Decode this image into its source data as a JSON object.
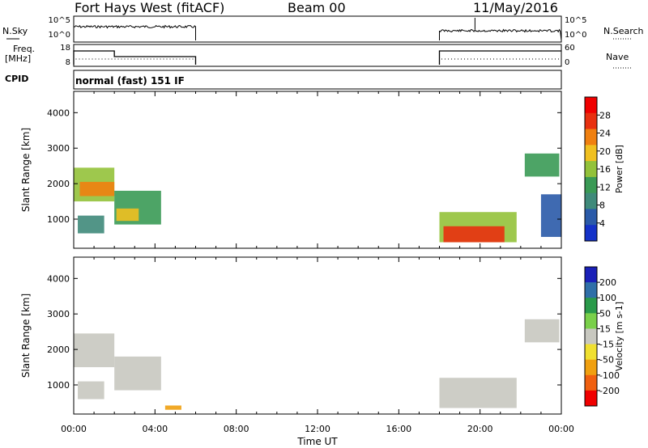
{
  "header": {
    "station": "Fort Hays West (fitACF)",
    "beam": "Beam 00",
    "date": "11/May/2016"
  },
  "labels": {
    "nsky": "N.Sky",
    "nsearch": "N.Search",
    "freq_top": "Freq.",
    "freq_unit": "[MHz]",
    "nave": "Nave",
    "cpid": "CPID",
    "cpid_value": "normal (fast) 151 IF"
  },
  "noise_axis": {
    "left_ticks": [
      "10^5",
      "10^0"
    ],
    "right_ticks": [
      "10^5",
      "10^0"
    ]
  },
  "freq_axis": {
    "left_ticks": [
      "18",
      "8"
    ],
    "right_ticks": [
      "60",
      "0"
    ]
  },
  "x_axis": {
    "label": "Time UT",
    "ticks": [
      "00:00",
      "04:00",
      "08:00",
      "12:00",
      "16:00",
      "20:00",
      "00:00"
    ]
  },
  "chart_data": [
    {
      "type": "heatmap",
      "title": "Power",
      "ylabel": "Slant Range [km]",
      "xlabel": "Time UT",
      "x_range_hours": [
        0,
        24
      ],
      "ylim": [
        180,
        4600
      ],
      "y_ticks": [
        "1000",
        "2000",
        "3000",
        "4000"
      ],
      "colorbar": {
        "label": "Power [dB]",
        "ticks": [
          "4",
          "8",
          "12",
          "16",
          "20",
          "24",
          "28"
        ],
        "range": [
          0,
          32
        ],
        "colors": [
          "#1432c8",
          "#2a5aa8",
          "#3f8a7a",
          "#3a9a55",
          "#93c23a",
          "#f0c020",
          "#f08010",
          "#e83010",
          "#f00000"
        ]
      },
      "echo_regions": [
        {
          "t0": 0.0,
          "t1": 2.0,
          "r0": 1500,
          "r1": 2450,
          "level": 16
        },
        {
          "t0": 0.3,
          "t1": 2.0,
          "r0": 1650,
          "r1": 2050,
          "level": 24
        },
        {
          "t0": 2.0,
          "t1": 4.3,
          "r0": 850,
          "r1": 1800,
          "level": 12
        },
        {
          "t0": 2.1,
          "t1": 3.2,
          "r0": 950,
          "r1": 1300,
          "level": 20
        },
        {
          "t0": 0.2,
          "t1": 1.5,
          "r0": 600,
          "r1": 1100,
          "level": 8
        },
        {
          "t0": 18.0,
          "t1": 21.8,
          "r0": 350,
          "r1": 1200,
          "level": 16
        },
        {
          "t0": 18.2,
          "t1": 21.2,
          "r0": 350,
          "r1": 800,
          "level": 26
        },
        {
          "t0": 22.2,
          "t1": 23.9,
          "r0": 2200,
          "r1": 2850,
          "level": 14
        },
        {
          "t0": 23.0,
          "t1": 24.0,
          "r0": 500,
          "r1": 1700,
          "level": 6
        }
      ]
    },
    {
      "type": "heatmap",
      "title": "Velocity",
      "ylabel": "Slant Range [km]",
      "xlabel": "Time UT",
      "x_range_hours": [
        0,
        24
      ],
      "ylim": [
        180,
        4600
      ],
      "y_ticks": [
        "1000",
        "2000",
        "3000",
        "4000"
      ],
      "colorbar": {
        "label": "Velocity [m s-1]",
        "ticks": [
          "200",
          "100",
          "50",
          "15",
          "-15",
          "-50",
          "-100",
          "-200"
        ],
        "colors": [
          "#1a20b8",
          "#2f6fa8",
          "#2a9a4a",
          "#7ad04a",
          "#c8c8c0",
          "#f0e030",
          "#f0a010",
          "#f06010",
          "#f00000"
        ]
      },
      "echo_regions": [
        {
          "t0": 0.0,
          "t1": 2.0,
          "r0": 1500,
          "r1": 2450,
          "value": 0
        },
        {
          "t0": 2.0,
          "t1": 4.3,
          "r0": 850,
          "r1": 1800,
          "value": 0
        },
        {
          "t0": 0.2,
          "t1": 1.5,
          "r0": 600,
          "r1": 1100,
          "value": 0
        },
        {
          "t0": 4.5,
          "t1": 5.3,
          "r0": 300,
          "r1": 420,
          "value": -60
        },
        {
          "t0": 18.0,
          "t1": 21.8,
          "r0": 350,
          "r1": 1200,
          "value": 0
        },
        {
          "t0": 22.2,
          "t1": 23.9,
          "r0": 2200,
          "r1": 2850,
          "value": 0
        }
      ]
    }
  ]
}
